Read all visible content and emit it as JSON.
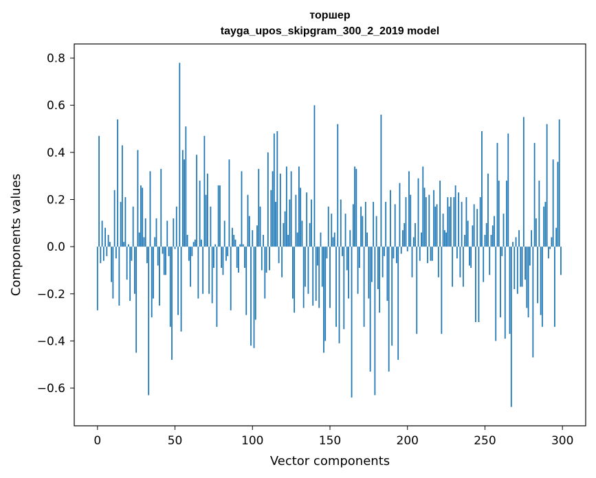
{
  "chart_data": {
    "type": "bar",
    "title": "торшер",
    "subtitle": "tayga_upos_skipgram_300_2_2019 model",
    "xlabel": "Vector components",
    "ylabel": "Components values",
    "xlim": [
      -15,
      315
    ],
    "ylim": [
      -0.76,
      0.86
    ],
    "x_ticks": [
      0,
      50,
      100,
      150,
      200,
      250,
      300
    ],
    "y_ticks": [
      -0.6,
      -0.4,
      -0.2,
      0.0,
      0.2,
      0.4,
      0.6,
      0.8
    ],
    "x_tick_labels": [
      "0",
      "50",
      "100",
      "150",
      "200",
      "250",
      "300"
    ],
    "y_tick_labels": [
      "−0.6",
      "−0.4",
      "−0.2",
      "0.0",
      "0.2",
      "0.4",
      "0.6",
      "0.8"
    ],
    "grid": false,
    "bar_color": "#1f77b4",
    "values": [
      -0.27,
      0.47,
      -0.07,
      0.11,
      -0.06,
      0.08,
      -0.04,
      0.05,
      0.02,
      -0.15,
      -0.22,
      0.24,
      -0.05,
      0.54,
      -0.25,
      0.19,
      0.43,
      0.02,
      0.21,
      -0.14,
      0.01,
      -0.23,
      -0.06,
      0.17,
      -0.2,
      -0.45,
      0.41,
      0.06,
      0.26,
      0.25,
      0.04,
      0.12,
      -0.07,
      -0.63,
      0.32,
      -0.3,
      -0.22,
      0.04,
      0.12,
      -0.08,
      -0.25,
      0.33,
      -0.03,
      -0.12,
      -0.12,
      0.11,
      -0.04,
      -0.34,
      -0.48,
      0.12,
      -0.01,
      0.17,
      -0.29,
      0.78,
      -0.36,
      0.41,
      0.37,
      0.51,
      0.05,
      -0.06,
      -0.17,
      -0.04,
      0.02,
      0.03,
      0.39,
      -0.22,
      0.28,
      0.03,
      -0.2,
      0.47,
      0.22,
      0.31,
      -0.2,
      0.17,
      -0.24,
      -0.09,
      0.01,
      -0.34,
      0.26,
      0.26,
      -0.09,
      -0.12,
      0.11,
      -0.06,
      -0.04,
      0.37,
      -0.27,
      0.08,
      0.05,
      0.03,
      -0.09,
      -0.11,
      0.01,
      0.32,
      0.01,
      -0.09,
      -0.29,
      0.22,
      0.13,
      -0.42,
      0.07,
      -0.43,
      -0.31,
      0.09,
      0.33,
      0.17,
      -0.1,
      0.05,
      -0.22,
      -0.11,
      0.4,
      -0.1,
      0.24,
      0.32,
      0.48,
      0.19,
      0.49,
      -0.07,
      0.31,
      -0.13,
      0.1,
      0.15,
      0.34,
      0.05,
      0.2,
      0.32,
      -0.22,
      -0.28,
      0.22,
      0.06,
      0.34,
      0.25,
      0.11,
      -0.26,
      -0.17,
      0.23,
      -0.2,
      0.1,
      0.2,
      -0.25,
      0.6,
      -0.23,
      -0.08,
      -0.26,
      0.06,
      -0.17,
      -0.45,
      -0.4,
      -0.05,
      0.17,
      -0.26,
      0.14,
      0.04,
      0.06,
      -0.34,
      0.52,
      -0.41,
      0.2,
      -0.04,
      -0.35,
      0.14,
      -0.1,
      -0.22,
      0.07,
      -0.64,
      0.18,
      0.34,
      0.33,
      -0.2,
      -0.09,
      0.17,
      0.13,
      -0.34,
      0.19,
      0.06,
      -0.22,
      -0.53,
      -0.15,
      0.19,
      -0.63,
      0.13,
      -0.18,
      -0.28,
      0.56,
      -0.13,
      -0.04,
      0.19,
      -0.23,
      -0.53,
      0.24,
      -0.42,
      -0.05,
      0.18,
      -0.07,
      -0.48,
      0.27,
      -0.03,
      0.07,
      0.1,
      0.21,
      -0.02,
      0.32,
      0.22,
      -0.13,
      0.04,
      0.1,
      -0.37,
      0.29,
      -0.06,
      0.06,
      0.34,
      0.25,
      0.21,
      -0.07,
      0.22,
      -0.06,
      -0.06,
      0.24,
      0.17,
      0.18,
      -0.13,
      0.28,
      -0.37,
      0.14,
      0.07,
      0.06,
      0.21,
      0.17,
      0.21,
      -0.17,
      0.21,
      0.26,
      -0.05,
      0.23,
      -0.13,
      0.19,
      -0.17,
      0.05,
      0.21,
      0.11,
      -0.08,
      -0.09,
      0.09,
      0.18,
      -0.32,
      0.16,
      -0.32,
      0.21,
      0.49,
      -0.15,
      0.05,
      0.1,
      0.31,
      -0.12,
      0.05,
      0.09,
      0.13,
      -0.4,
      0.44,
      0.28,
      -0.3,
      -0.04,
      0.14,
      -0.39,
      0.28,
      0.48,
      -0.37,
      -0.68,
      0.02,
      -0.18,
      0.04,
      -0.2,
      0.07,
      -0.17,
      -0.17,
      0.55,
      -0.14,
      -0.26,
      -0.3,
      -0.08,
      0.07,
      -0.47,
      0.44,
      0.12,
      -0.24,
      0.28,
      -0.29,
      -0.34,
      0.17,
      0.19,
      0.52,
      -0.05,
      -0.01,
      0.04,
      0.37,
      -0.34,
      0.08,
      0.36,
      0.54,
      -0.12
    ]
  }
}
